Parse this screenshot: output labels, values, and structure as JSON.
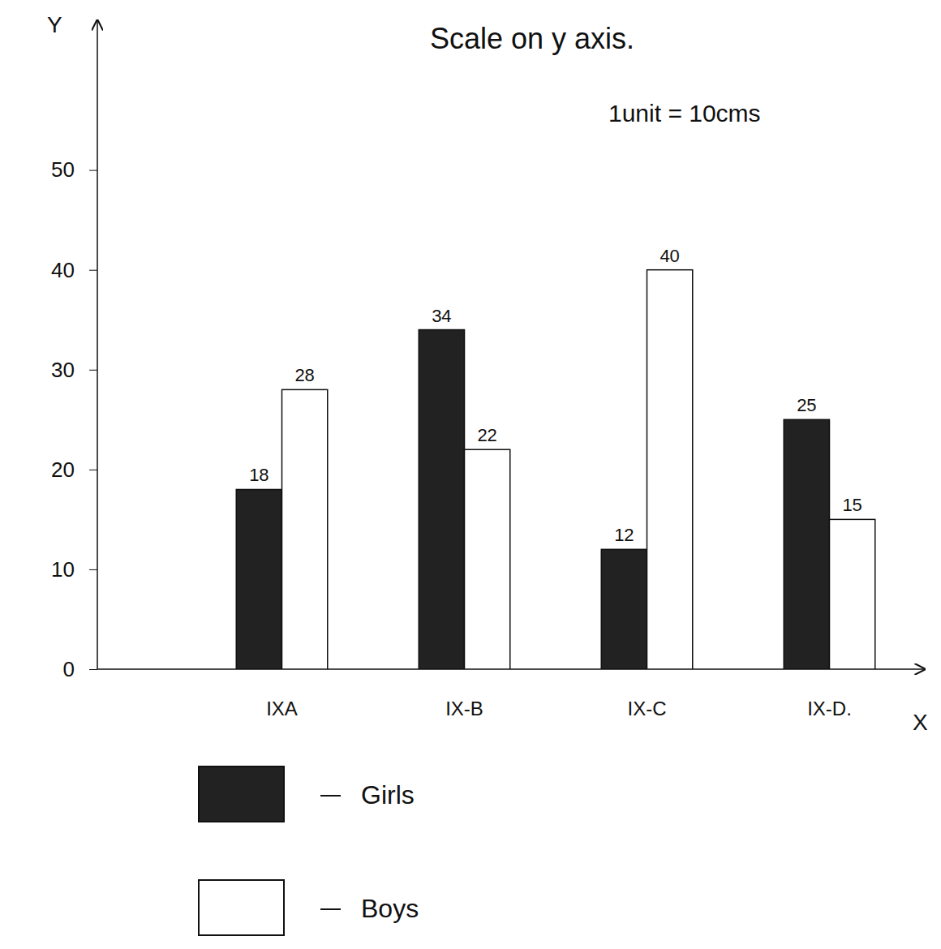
{
  "chart_data": {
    "type": "bar",
    "title": "Scale on y axis.",
    "subtitle": "1unit = 10cms",
    "x_label": "X",
    "y_label": "Y",
    "categories": [
      "IXA",
      "IX-B",
      "IX-C",
      "IX-D."
    ],
    "series": [
      {
        "name": "Girls",
        "color": "#222222",
        "values": [
          18,
          34,
          12,
          25
        ]
      },
      {
        "name": "Boys",
        "color": "#ffffff",
        "values": [
          28,
          22,
          40,
          15
        ]
      }
    ],
    "ylim": [
      0,
      65
    ],
    "yticks": [
      0,
      10,
      20,
      30,
      40,
      50
    ],
    "grid": false,
    "data_labels": true,
    "legend": "bottom-left"
  }
}
